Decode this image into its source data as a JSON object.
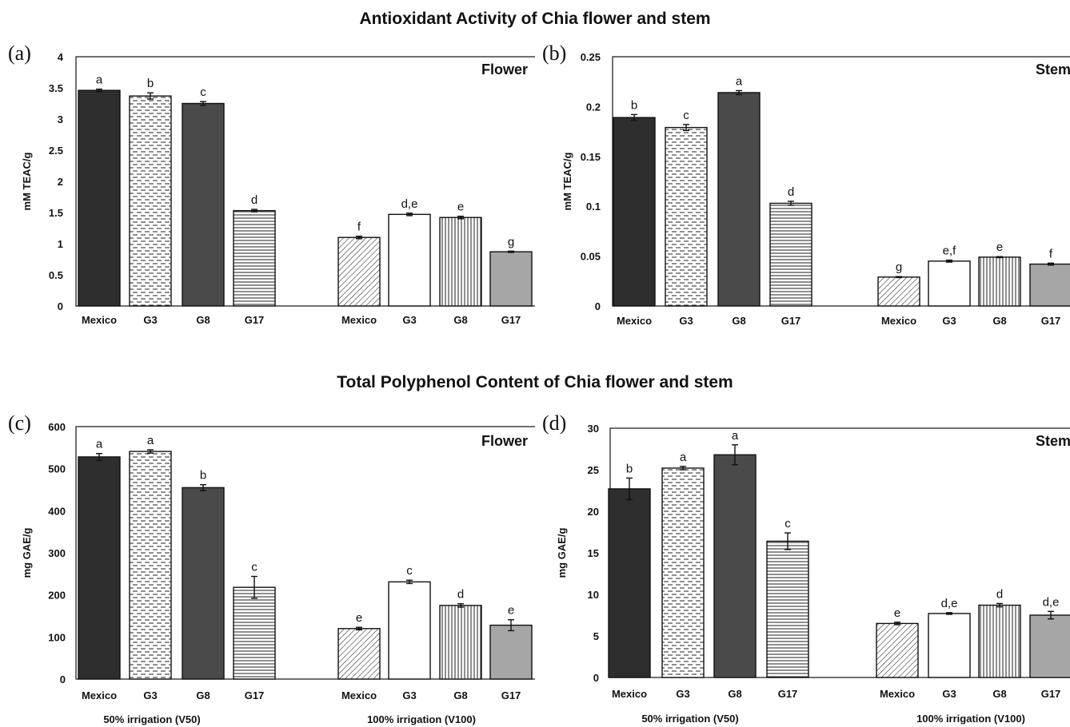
{
  "titles": {
    "top": "Antioxidant Activity of Chia flower and stem",
    "bottom": "Total Polyphenol Content of Chia flower and stem"
  },
  "colors": {
    "mexico_v50": "#2e2e2e",
    "g8_v50": "#4a4a4a",
    "g17_v100": "#a6a6a6",
    "outline": "#111111"
  },
  "chart_data": [
    {
      "type": "bar",
      "panel": "(a)",
      "corner_label": "Flower",
      "ylabel": "mM TEAC/g",
      "ylim": [
        0,
        4
      ],
      "yticks": [
        "0",
        "0.5",
        "1",
        "1.5",
        "2",
        "2.5",
        "3",
        "3.5",
        "4"
      ],
      "groups": [
        {
          "label": "50% irrigation (V50)",
          "categories": [
            "Mexico",
            "G3",
            "G8",
            "G17"
          ],
          "values": [
            3.46,
            3.37,
            3.25,
            1.53
          ],
          "errors": [
            0.02,
            0.05,
            0.03,
            0.02
          ],
          "letters": [
            "a",
            "b",
            "c",
            "d"
          ]
        },
        {
          "label": "100% irrigation (V100)",
          "categories": [
            "Mexico",
            "G3",
            "G8",
            "G17"
          ],
          "values": [
            1.1,
            1.47,
            1.42,
            0.87
          ],
          "errors": [
            0.02,
            0.02,
            0.02,
            0.01
          ],
          "letters": [
            "f",
            "d,e",
            "e",
            "g"
          ]
        }
      ]
    },
    {
      "type": "bar",
      "panel": "(b)",
      "corner_label": "Stem",
      "ylabel": "mM TEAC/g",
      "ylim": [
        0,
        0.25
      ],
      "yticks": [
        "0",
        "0.05",
        "0.1",
        "0.15",
        "0.2",
        "0.25"
      ],
      "groups": [
        {
          "label": "50% irrigation (V50)",
          "categories": [
            "Mexico",
            "G3",
            "G8",
            "G17"
          ],
          "values": [
            0.189,
            0.179,
            0.214,
            0.103
          ],
          "errors": [
            0.003,
            0.003,
            0.002,
            0.002
          ],
          "letters": [
            "b",
            "c",
            "a",
            "d"
          ]
        },
        {
          "label": "100% irrigation (V100)",
          "categories": [
            "Mexico",
            "G3",
            "G8",
            "G17"
          ],
          "values": [
            0.029,
            0.045,
            0.049,
            0.042
          ],
          "errors": [
            0.0005,
            0.001,
            0.0005,
            0.001
          ],
          "letters": [
            "g",
            "e,f",
            "e",
            "f"
          ]
        }
      ]
    },
    {
      "type": "bar",
      "panel": "(c)",
      "corner_label": "Flower",
      "ylabel": "mg GAE/g",
      "ylim": [
        0,
        600
      ],
      "yticks": [
        "0",
        "100",
        "200",
        "300",
        "400",
        "500",
        "600"
      ],
      "groups": [
        {
          "label": "50% irrigation  (V50)",
          "categories": [
            "Mexico",
            "G3",
            "G8",
            "G17"
          ],
          "values": [
            528,
            541,
            455,
            218
          ],
          "errors": [
            8,
            4,
            7,
            26
          ],
          "letters": [
            "a",
            "a",
            "b",
            "c"
          ]
        },
        {
          "label": "100% irrigation (V100)",
          "categories": [
            "Mexico",
            "G3",
            "G8",
            "G17"
          ],
          "values": [
            120,
            231,
            175,
            128
          ],
          "errors": [
            3,
            4,
            4,
            13
          ],
          "letters": [
            "e",
            "c",
            "d",
            "e"
          ]
        }
      ]
    },
    {
      "type": "bar",
      "panel": "(d)",
      "corner_label": "Stem",
      "ylabel": "mg GAE/g",
      "ylim": [
        0,
        30
      ],
      "yticks": [
        "0",
        "5",
        "10",
        "15",
        "20",
        "25",
        "30"
      ],
      "groups": [
        {
          "label": "50% irrigation  (V50)",
          "categories": [
            "Mexico",
            "G3",
            "G8",
            "G17"
          ],
          "values": [
            22.7,
            25.2,
            26.8,
            16.4
          ],
          "errors": [
            1.3,
            0.2,
            1.2,
            1.0
          ],
          "letters": [
            "b",
            "a",
            "a",
            "c"
          ]
        },
        {
          "label": "100% irrigation (V100)",
          "categories": [
            "Mexico",
            "G3",
            "G8",
            "G17"
          ],
          "values": [
            6.5,
            7.7,
            8.7,
            7.5
          ],
          "errors": [
            0.15,
            0.1,
            0.2,
            0.45
          ],
          "letters": [
            "e",
            "d,e",
            "d",
            "d,e"
          ]
        }
      ]
    }
  ]
}
